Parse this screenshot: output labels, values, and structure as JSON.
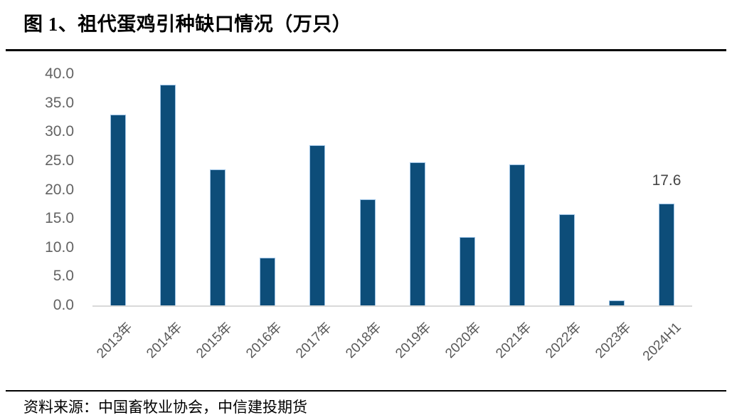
{
  "figure": {
    "title": "图 1、祖代蛋鸡引种缺口情况（万只）",
    "source": "资料来源：中国畜牧业协会，中信建投期货"
  },
  "chart_data": {
    "type": "bar",
    "title": "图 1、祖代蛋鸡引种缺口情况（万只）",
    "unit": "万只",
    "categories": [
      "2013年",
      "2014年",
      "2015年",
      "2016年",
      "2017年",
      "2018年",
      "2019年",
      "2020年",
      "2021年",
      "2022年",
      "2023年",
      "2024H1"
    ],
    "values": [
      33.0,
      38.2,
      23.5,
      8.3,
      27.7,
      18.3,
      24.8,
      11.8,
      24.4,
      15.8,
      0.9,
      17.6
    ],
    "ylim": [
      0,
      40
    ],
    "ytick_interval": 5,
    "ytick_labels": [
      "40.0",
      "35.0",
      "30.0",
      "25.0",
      "20.0",
      "15.0",
      "10.0",
      "5.0",
      "0.0"
    ],
    "xtick_rotation_deg": 45,
    "grid": false,
    "legend": false,
    "data_label": {
      "category": "2024H1",
      "text": "17.6"
    },
    "colors": {
      "bar_fill": "#0d4d79",
      "bar_border": "#9dc3e6",
      "axis_line": "#d9d9d9",
      "y_tick_text": "#636363",
      "x_tick_text": "#595959",
      "data_label_text": "#454545"
    }
  }
}
